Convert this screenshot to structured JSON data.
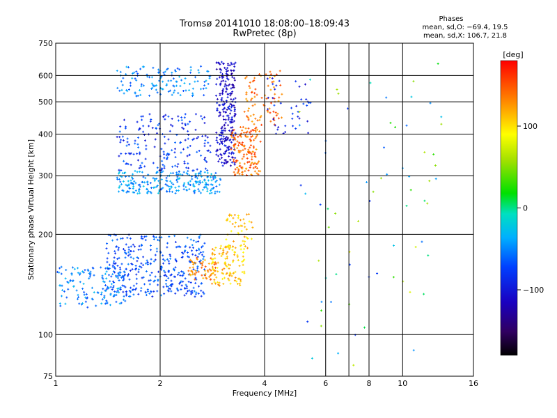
{
  "chart_data": {
    "type": "scatter",
    "title": "Tromsø 20141010 18:08:00–18:09:43",
    "subtitle": "RwPretec (8p)",
    "xlabel": "Frequency [MHz]",
    "ylabel": "Stationary phase Virtual Height [km]",
    "x_scale": "log",
    "y_scale": "log",
    "xlim": [
      1,
      16
    ],
    "ylim": [
      75,
      750
    ],
    "x_ticks": [
      "1",
      "2",
      "4",
      "6",
      "8",
      "10",
      "16"
    ],
    "x_tick_values": [
      1,
      2,
      4,
      6,
      8,
      10,
      16
    ],
    "y_ticks": [
      "75",
      "100",
      "200",
      "300",
      "400",
      "500",
      "600",
      "750"
    ],
    "y_tick_values": [
      75,
      100,
      200,
      300,
      400,
      500,
      600,
      750
    ],
    "x_grid_values": [
      1,
      2,
      4,
      6,
      7,
      8,
      10,
      16
    ],
    "grid": true,
    "legend": {
      "title": "Phases",
      "line1": "mean, sd,O: −69.4, 19.5",
      "line2": "mean, sd,X: 106.7, 21.8",
      "placement": "top-right"
    },
    "colorbar": {
      "label": "[deg]",
      "range": [
        -180,
        180
      ],
      "ticks": [
        "100",
        "0",
        "−100"
      ],
      "tick_values": [
        100,
        0,
        -100
      ]
    },
    "clusters": [
      {
        "x_range": [
          1.0,
          1.6
        ],
        "y_range": [
          120,
          160
        ],
        "phase": -50,
        "count": 140
      },
      {
        "x_range": [
          1.4,
          2.7
        ],
        "y_range": [
          130,
          200
        ],
        "phase": -70,
        "count": 360
      },
      {
        "x_range": [
          2.4,
          2.9
        ],
        "y_range": [
          145,
          170
        ],
        "phase": 130,
        "count": 60
      },
      {
        "x_range": [
          2.8,
          3.5
        ],
        "y_range": [
          140,
          185
        ],
        "phase": 110,
        "count": 110
      },
      {
        "x_range": [
          3.1,
          3.7
        ],
        "y_range": [
          180,
          230
        ],
        "phase": 110,
        "count": 50
      },
      {
        "x_range": [
          1.5,
          3.0
        ],
        "y_range": [
          265,
          310
        ],
        "phase": -45,
        "count": 240
      },
      {
        "x_range": [
          1.5,
          2.8
        ],
        "y_range": [
          310,
          460
        ],
        "phase": -80,
        "count": 180
      },
      {
        "x_range": [
          1.5,
          2.8
        ],
        "y_range": [
          520,
          640
        ],
        "phase": -50,
        "count": 130
      },
      {
        "x_range": [
          2.9,
          3.3
        ],
        "y_range": [
          320,
          660
        ],
        "phase": -110,
        "count": 260
      },
      {
        "x_range": [
          3.2,
          3.9
        ],
        "y_range": [
          300,
          420
        ],
        "phase": 140,
        "count": 150
      },
      {
        "x_range": [
          3.5,
          4.5
        ],
        "y_range": [
          420,
          620
        ],
        "phase": 140,
        "count": 80
      },
      {
        "x_range": [
          4.0,
          5.5
        ],
        "y_range": [
          400,
          600
        ],
        "phase": -90,
        "count": 40
      },
      {
        "x_range": [
          5.0,
          13.0
        ],
        "y_range": [
          80,
          680
        ],
        "phase": 0,
        "count": 70
      }
    ]
  }
}
